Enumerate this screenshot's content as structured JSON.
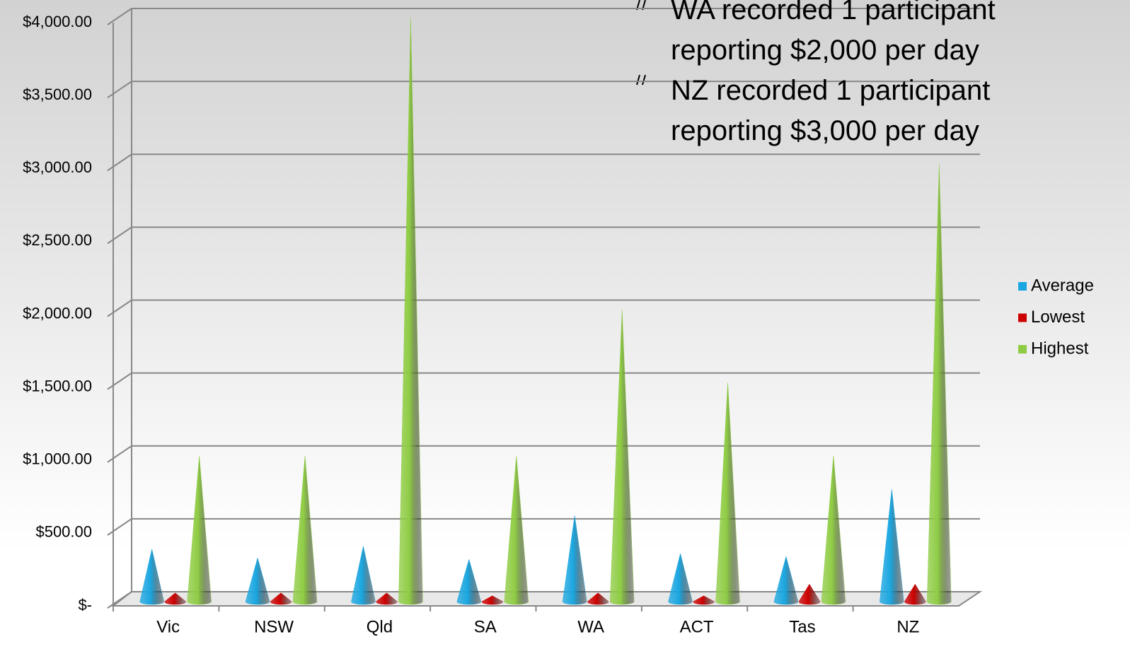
{
  "chart_data": {
    "type": "cone",
    "categories": [
      "Vic",
      "NSW",
      "Qld",
      "SA",
      "WA",
      "ACT",
      "Tas",
      "NZ"
    ],
    "series": [
      {
        "name": "Average",
        "color": "#1aa6e0",
        "values": [
          360,
          300,
          380,
          290,
          590,
          330,
          310,
          770
        ]
      },
      {
        "name": "Lowest",
        "color": "#cc0000",
        "values": [
          60,
          60,
          60,
          40,
          60,
          40,
          120,
          120
        ]
      },
      {
        "name": "Highest",
        "color": "#8fcc44",
        "values": [
          1000,
          1000,
          4000,
          1000,
          2000,
          1500,
          1000,
          3000
        ]
      }
    ],
    "ylim": [
      0,
      4000
    ],
    "yticks": [
      {
        "value": 0,
        "label": "$-"
      },
      {
        "value": 500,
        "label": "$500.00"
      },
      {
        "value": 1000,
        "label": "$1,000.00"
      },
      {
        "value": 1500,
        "label": "$1,500.00"
      },
      {
        "value": 2000,
        "label": "$2,000.00"
      },
      {
        "value": 2500,
        "label": "$2,500.00"
      },
      {
        "value": 3000,
        "label": "$3,000.00"
      },
      {
        "value": 3500,
        "label": "$3,500.00"
      },
      {
        "value": 4000,
        "label": "$4,000.00"
      }
    ],
    "grid": true,
    "legend": "right",
    "annotations": [
      "WA recorded 1 participant reporting $2,000 per day",
      "NZ recorded 1 participant reporting $3,000 per day"
    ]
  }
}
